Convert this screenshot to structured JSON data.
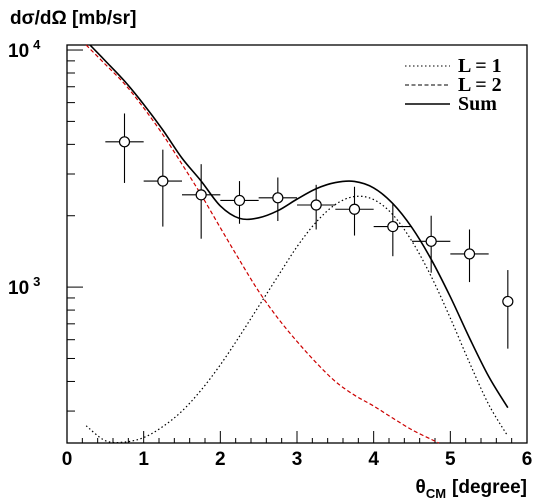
{
  "chart_data": {
    "type": "scatter",
    "ylabel": "dσ/dΩ [mb/sr]",
    "xlabel_symbol": "θ",
    "xlabel_subscript": "CM",
    "xlabel_unit": "[degree]",
    "xlim": [
      0,
      6
    ],
    "ylim": [
      220,
      10500
    ],
    "yscale": "log",
    "x_ticks": [
      {
        "value": 0,
        "label": "0"
      },
      {
        "value": 1,
        "label": "1"
      },
      {
        "value": 2,
        "label": "2"
      },
      {
        "value": 3,
        "label": "3"
      },
      {
        "value": 4,
        "label": "4"
      },
      {
        "value": 5,
        "label": "5"
      },
      {
        "value": 6,
        "label": "6"
      }
    ],
    "y_major_ticks": [
      {
        "value": 1000,
        "base": "10",
        "exp": "3"
      },
      {
        "value": 10000,
        "base": "10",
        "exp": "4"
      }
    ],
    "y_minor_ticks": [
      300,
      400,
      500,
      600,
      700,
      800,
      900,
      2000,
      3000,
      4000,
      5000,
      6000,
      7000,
      8000,
      9000
    ],
    "data_points": [
      {
        "x": 0.75,
        "y": 4100,
        "xerr": 0.25,
        "ylow": 2750,
        "yhigh": 5400
      },
      {
        "x": 1.25,
        "y": 2800,
        "xerr": 0.25,
        "ylow": 1800,
        "yhigh": 3800
      },
      {
        "x": 1.75,
        "y": 2450,
        "xerr": 0.25,
        "ylow": 1600,
        "yhigh": 3300
      },
      {
        "x": 2.25,
        "y": 2320,
        "xerr": 0.25,
        "ylow": 1850,
        "yhigh": 2800
      },
      {
        "x": 2.75,
        "y": 2380,
        "xerr": 0.25,
        "ylow": 1900,
        "yhigh": 2900
      },
      {
        "x": 3.25,
        "y": 2220,
        "xerr": 0.25,
        "ylow": 1750,
        "yhigh": 2700
      },
      {
        "x": 3.75,
        "y": 2130,
        "xerr": 0.25,
        "ylow": 1650,
        "yhigh": 2650
      },
      {
        "x": 4.25,
        "y": 1800,
        "xerr": 0.25,
        "ylow": 1350,
        "yhigh": 2250
      },
      {
        "x": 4.75,
        "y": 1560,
        "xerr": 0.25,
        "ylow": 1150,
        "yhigh": 2000
      },
      {
        "x": 5.25,
        "y": 1380,
        "xerr": 0.25,
        "ylow": 1050,
        "yhigh": 1750
      },
      {
        "x": 5.75,
        "y": 870,
        "xerr": 0.0,
        "ylow": 550,
        "yhigh": 1180
      }
    ],
    "series": [
      {
        "name": "L = 1",
        "style": "dotted",
        "color": "#000000",
        "x": [
          0.25,
          0.5,
          0.75,
          1.0,
          1.25,
          1.5,
          1.75,
          2.0,
          2.25,
          2.5,
          2.75,
          3.0,
          3.25,
          3.5,
          3.75,
          4.0,
          4.25,
          4.5,
          4.75,
          5.0,
          5.25,
          5.5,
          5.75
        ],
        "y": [
          260,
          225,
          222,
          232,
          258,
          300,
          368,
          470,
          620,
          830,
          1110,
          1480,
          1880,
          2230,
          2410,
          2340,
          2020,
          1560,
          1110,
          740,
          480,
          320,
          235
        ]
      },
      {
        "name": "L = 2",
        "style": "dashed",
        "color": "#cc0000",
        "x": [
          0.25,
          0.5,
          0.75,
          1.0,
          1.25,
          1.5,
          1.75,
          2.0,
          2.25,
          2.5,
          2.75,
          3.0,
          3.25,
          3.5,
          3.75,
          4.0,
          4.25,
          4.5,
          4.75,
          4.85
        ],
        "y": [
          10500,
          8700,
          7200,
          5700,
          4400,
          3300,
          2450,
          1780,
          1300,
          960,
          740,
          590,
          480,
          400,
          350,
          315,
          280,
          250,
          228,
          220
        ]
      },
      {
        "name": "Sum",
        "style": "solid",
        "color": "#000000",
        "x": [
          0.3,
          0.5,
          0.75,
          1.0,
          1.25,
          1.5,
          1.75,
          2.0,
          2.25,
          2.5,
          2.75,
          3.0,
          3.25,
          3.5,
          3.75,
          4.0,
          4.25,
          4.5,
          4.75,
          5.0,
          5.25,
          5.5,
          5.75
        ],
        "y": [
          10500,
          9000,
          7400,
          5900,
          4600,
          3500,
          2800,
          2200,
          1950,
          1960,
          2100,
          2350,
          2600,
          2760,
          2790,
          2620,
          2250,
          1780,
          1310,
          910,
          610,
          420,
          310
        ]
      }
    ],
    "legend_position": "top-right"
  }
}
